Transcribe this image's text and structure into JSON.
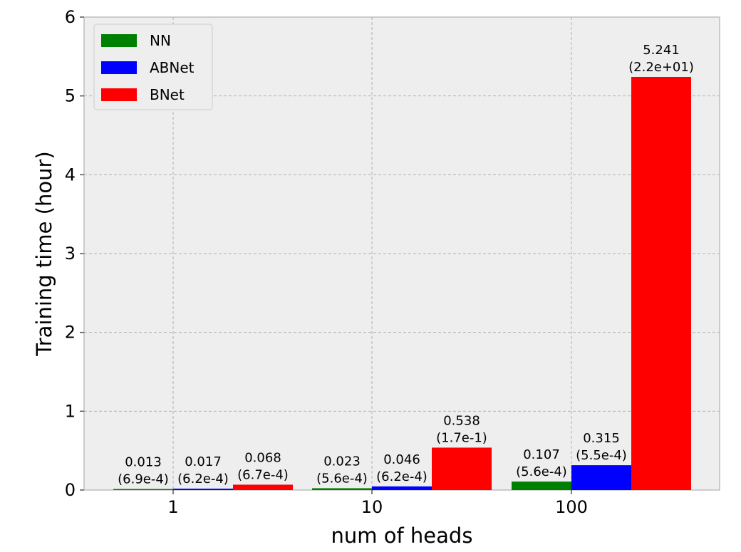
{
  "chart_data": {
    "type": "bar",
    "xlabel": "num of heads",
    "ylabel": "Training time (hour)",
    "categories": [
      "1",
      "10",
      "100"
    ],
    "ylim": [
      0,
      6
    ],
    "yticks": [
      0,
      1,
      2,
      3,
      4,
      5,
      6
    ],
    "grid": true,
    "legend_position": "top-left",
    "series": [
      {
        "name": "NN",
        "color": "#008000",
        "values": [
          0.013,
          0.023,
          0.107
        ],
        "labels": [
          [
            "0.013",
            "(6.9e-4)"
          ],
          [
            "0.023",
            "(5.6e-4)"
          ],
          [
            "0.107",
            "(5.6e-4)"
          ]
        ]
      },
      {
        "name": "ABNet",
        "color": "#0000ff",
        "values": [
          0.017,
          0.046,
          0.315
        ],
        "labels": [
          [
            "0.017",
            "(6.2e-4)"
          ],
          [
            "0.046",
            "(6.2e-4)"
          ],
          [
            "0.315",
            "(5.5e-4)"
          ]
        ]
      },
      {
        "name": "BNet",
        "color": "#ff0000",
        "values": [
          0.068,
          0.538,
          5.241
        ],
        "labels": [
          [
            "0.068",
            "(6.7e-4)"
          ],
          [
            "0.538",
            "(1.7e-1)"
          ],
          [
            "5.241",
            "(2.2e+01)"
          ]
        ]
      }
    ]
  }
}
